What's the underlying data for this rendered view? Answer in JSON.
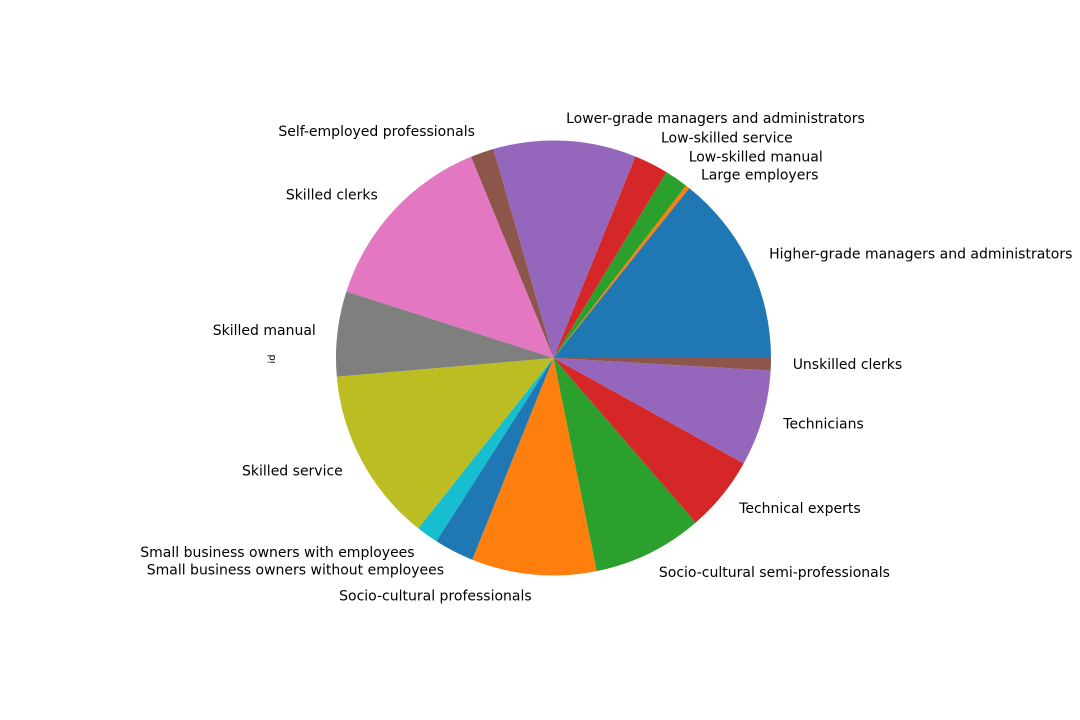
{
  "chart_data": {
    "type": "pie",
    "ylabel": "id",
    "start_angle_deg": 0,
    "direction": "counterclockwise",
    "legend": "none",
    "slices": [
      {
        "label": "Higher-grade managers and administrators",
        "value": 14.0,
        "color": "#1f77b4"
      },
      {
        "label": "Large employers",
        "value": 0.3,
        "color": "#ff7f0e"
      },
      {
        "label": "Low-skilled manual",
        "value": 1.7,
        "color": "#2ca02c"
      },
      {
        "label": "Low-skilled service",
        "value": 2.5,
        "color": "#d62728"
      },
      {
        "label": "Lower-grade managers and administrators",
        "value": 10.4,
        "color": "#9467bd"
      },
      {
        "label": "Self-employed professionals",
        "value": 1.7,
        "color": "#8c564b"
      },
      {
        "label": "Skilled clerks",
        "value": 13.6,
        "color": "#e377c2"
      },
      {
        "label": "Skilled manual",
        "value": 6.2,
        "color": "#7f7f7f"
      },
      {
        "label": "Skilled service",
        "value": 12.7,
        "color": "#bcbd22"
      },
      {
        "label": "Small business owners with employees",
        "value": 1.6,
        "color": "#17becf"
      },
      {
        "label": "Small business owners without employees",
        "value": 2.9,
        "color": "#1f77b4"
      },
      {
        "label": "Socio-cultural professionals",
        "value": 9.1,
        "color": "#ff7f0e"
      },
      {
        "label": "Socio-cultural semi-professionals",
        "value": 8.0,
        "color": "#2ca02c"
      },
      {
        "label": "Technical experts",
        "value": 5.5,
        "color": "#d62728"
      },
      {
        "label": "Technicians",
        "value": 7.0,
        "color": "#9467bd"
      },
      {
        "label": "Unskilled clerks",
        "value": 0.9,
        "color": "#8c564b"
      }
    ]
  }
}
